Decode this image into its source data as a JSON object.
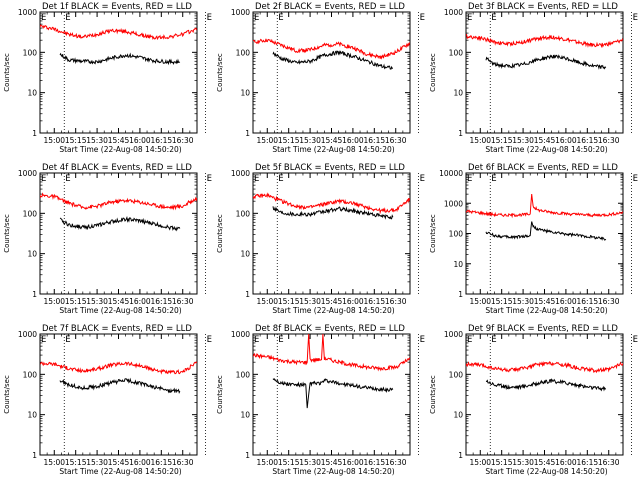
{
  "figure": {
    "common": {
      "xticks": [
        "15:00",
        "15:15",
        "15:30",
        "15:45",
        "16:00",
        "16:15",
        "16:30"
      ],
      "xlabel": "Start Time (22-Aug-08 14:50:20)",
      "ylabel": "Counts/sec",
      "series_names": [
        "Events",
        "LLD"
      ],
      "series_colors": {
        "Events": "#000000",
        "LLD": "#ff0000"
      },
      "marker_lines_min": [
        7,
        106
      ],
      "marker_label": "E"
    }
  },
  "chart_data": [
    {
      "type": "line",
      "title": "Det 1f BLACK = Events, RED = LLD",
      "x_range_min": [
        -10,
        100
      ],
      "ylim": [
        1,
        1000
      ],
      "yscale": "log",
      "yticks": [
        "1",
        "10",
        "100",
        "1000"
      ],
      "series": [
        {
          "name": "LLD",
          "color": "#ff0000",
          "x": [
            -10,
            0,
            10,
            20,
            30,
            40,
            50,
            60,
            70,
            80,
            90,
            100
          ],
          "values": [
            450,
            380,
            280,
            240,
            280,
            350,
            330,
            270,
            230,
            240,
            280,
            380
          ]
        },
        {
          "name": "Events",
          "color": "#000000",
          "x": [
            4,
            10,
            20,
            30,
            40,
            50,
            60,
            70,
            80,
            88
          ],
          "values": [
            90,
            65,
            60,
            58,
            72,
            85,
            75,
            62,
            58,
            58
          ]
        }
      ]
    },
    {
      "type": "line",
      "title": "Det 2f BLACK = Events, RED = LLD",
      "x_range_min": [
        -10,
        100
      ],
      "ylim": [
        1,
        1000
      ],
      "yscale": "log",
      "yticks": [
        "1",
        "10",
        "100",
        "1000"
      ],
      "series": [
        {
          "name": "LLD",
          "color": "#ff0000",
          "x": [
            -10,
            0,
            10,
            20,
            30,
            40,
            50,
            60,
            70,
            80,
            90,
            100
          ],
          "values": [
            180,
            200,
            150,
            110,
            115,
            150,
            160,
            130,
            90,
            75,
            100,
            170
          ]
        },
        {
          "name": "Events",
          "color": "#000000",
          "x": [
            4,
            10,
            20,
            30,
            40,
            50,
            60,
            70,
            80,
            88
          ],
          "values": [
            95,
            70,
            55,
            60,
            85,
            100,
            80,
            60,
            45,
            40
          ]
        }
      ]
    },
    {
      "type": "line",
      "title": "Det 3f BLACK = Events, RED = LLD",
      "x_range_min": [
        -10,
        100
      ],
      "ylim": [
        1,
        1000
      ],
      "yscale": "log",
      "yticks": [
        "1",
        "10",
        "100",
        "1000"
      ],
      "series": [
        {
          "name": "LLD",
          "color": "#ff0000",
          "x": [
            -10,
            0,
            10,
            20,
            30,
            40,
            50,
            60,
            70,
            80,
            90,
            100
          ],
          "values": [
            250,
            230,
            180,
            160,
            180,
            220,
            240,
            210,
            170,
            150,
            160,
            200
          ]
        },
        {
          "name": "Events",
          "color": "#000000",
          "x": [
            4,
            10,
            20,
            30,
            40,
            50,
            60,
            70,
            80,
            88
          ],
          "values": [
            70,
            50,
            45,
            50,
            65,
            80,
            70,
            55,
            45,
            42
          ]
        }
      ]
    },
    {
      "type": "line",
      "title": "Det 4f BLACK = Events, RED = LLD",
      "x_range_min": [
        -10,
        100
      ],
      "ylim": [
        1,
        1000
      ],
      "yscale": "log",
      "yticks": [
        "1",
        "10",
        "100",
        "1000"
      ],
      "series": [
        {
          "name": "LLD",
          "color": "#ff0000",
          "x": [
            -10,
            0,
            10,
            20,
            30,
            40,
            50,
            60,
            70,
            80,
            90,
            100
          ],
          "values": [
            280,
            260,
            180,
            140,
            150,
            190,
            210,
            190,
            160,
            140,
            150,
            240
          ]
        },
        {
          "name": "Events",
          "color": "#000000",
          "x": [
            4,
            10,
            20,
            30,
            40,
            50,
            60,
            70,
            80,
            88
          ],
          "values": [
            70,
            52,
            45,
            50,
            62,
            72,
            65,
            55,
            45,
            42
          ]
        }
      ]
    },
    {
      "type": "line",
      "title": "Det 5f BLACK = Events, RED = LLD",
      "x_range_min": [
        -10,
        100
      ],
      "ylim": [
        1,
        1000
      ],
      "yscale": "log",
      "yticks": [
        "1",
        "10",
        "100",
        "1000"
      ],
      "series": [
        {
          "name": "LLD",
          "color": "#ff0000",
          "x": [
            -10,
            0,
            10,
            20,
            30,
            40,
            50,
            60,
            70,
            80,
            90,
            100
          ],
          "values": [
            260,
            280,
            200,
            150,
            140,
            170,
            200,
            180,
            140,
            115,
            120,
            230
          ]
        },
        {
          "name": "Events",
          "color": "#000000",
          "x": [
            4,
            10,
            20,
            30,
            40,
            50,
            60,
            70,
            80,
            88
          ],
          "values": [
            140,
            105,
            95,
            95,
            110,
            130,
            115,
            100,
            85,
            80
          ]
        }
      ]
    },
    {
      "type": "line",
      "title": "Det 6f BLACK = Events, RED = LLD",
      "x_range_min": [
        -10,
        100
      ],
      "ylim": [
        1,
        10000
      ],
      "yscale": "log",
      "yticks": [
        "1",
        "10",
        "100",
        "1000",
        "10000"
      ],
      "series": [
        {
          "name": "LLD",
          "color": "#ff0000",
          "x": [
            -10,
            0,
            10,
            20,
            30,
            35,
            36,
            37,
            40,
            50,
            60,
            70,
            80,
            90,
            100
          ],
          "values": [
            550,
            480,
            420,
            400,
            420,
            440,
            2000,
            800,
            600,
            500,
            450,
            420,
            400,
            420,
            500
          ]
        },
        {
          "name": "Events",
          "color": "#000000",
          "x": [
            4,
            10,
            20,
            30,
            35,
            36,
            37,
            40,
            50,
            60,
            70,
            80,
            88
          ],
          "values": [
            110,
            85,
            75,
            80,
            85,
            250,
            170,
            140,
            110,
            95,
            85,
            75,
            65
          ]
        }
      ]
    },
    {
      "type": "line",
      "title": "Det 7f BLACK = Events, RED = LLD",
      "x_range_min": [
        -10,
        100
      ],
      "ylim": [
        1,
        1000
      ],
      "yscale": "log",
      "yticks": [
        "1",
        "10",
        "100",
        "1000"
      ],
      "series": [
        {
          "name": "LLD",
          "color": "#ff0000",
          "x": [
            -10,
            0,
            10,
            20,
            30,
            40,
            50,
            60,
            70,
            80,
            90,
            100
          ],
          "values": [
            190,
            180,
            140,
            120,
            135,
            170,
            190,
            160,
            130,
            110,
            115,
            200
          ]
        },
        {
          "name": "Events",
          "color": "#000000",
          "x": [
            4,
            10,
            20,
            30,
            40,
            50,
            60,
            70,
            80,
            88
          ],
          "values": [
            70,
            55,
            45,
            50,
            62,
            72,
            60,
            48,
            40,
            38
          ]
        }
      ]
    },
    {
      "type": "line",
      "title": "Det 8f BLACK = Events, RED = LLD",
      "x_range_min": [
        -10,
        100
      ],
      "ylim": [
        1,
        1000
      ],
      "yscale": "log",
      "yticks": [
        "1",
        "10",
        "100",
        "1000"
      ],
      "series": [
        {
          "name": "LLD",
          "color": "#ff0000",
          "x": [
            -10,
            0,
            10,
            20,
            28,
            29,
            30,
            38,
            39,
            40,
            50,
            60,
            70,
            80,
            90,
            100
          ],
          "values": [
            300,
            270,
            220,
            200,
            200,
            1000,
            230,
            230,
            1000,
            250,
            200,
            170,
            150,
            140,
            150,
            240
          ]
        },
        {
          "name": "Events",
          "color": "#000000",
          "x": [
            4,
            10,
            20,
            27,
            28,
            30,
            38,
            40,
            50,
            60,
            70,
            80,
            88
          ],
          "values": [
            80,
            60,
            55,
            55,
            14,
            60,
            60,
            70,
            60,
            52,
            46,
            42,
            42
          ]
        }
      ]
    },
    {
      "type": "line",
      "title": "Det 9f BLACK = Events, RED = LLD",
      "x_range_min": [
        -10,
        100
      ],
      "ylim": [
        1,
        1000
      ],
      "yscale": "log",
      "yticks": [
        "1",
        "10",
        "100",
        "1000"
      ],
      "series": [
        {
          "name": "LLD",
          "color": "#ff0000",
          "x": [
            -10,
            0,
            10,
            20,
            30,
            40,
            50,
            60,
            70,
            80,
            90,
            100
          ],
          "values": [
            180,
            170,
            140,
            125,
            140,
            175,
            190,
            170,
            140,
            125,
            130,
            190
          ]
        },
        {
          "name": "Events",
          "color": "#000000",
          "x": [
            4,
            10,
            20,
            30,
            40,
            50,
            60,
            70,
            80,
            88
          ],
          "values": [
            70,
            55,
            48,
            50,
            60,
            68,
            62,
            52,
            46,
            44
          ]
        }
      ]
    }
  ]
}
